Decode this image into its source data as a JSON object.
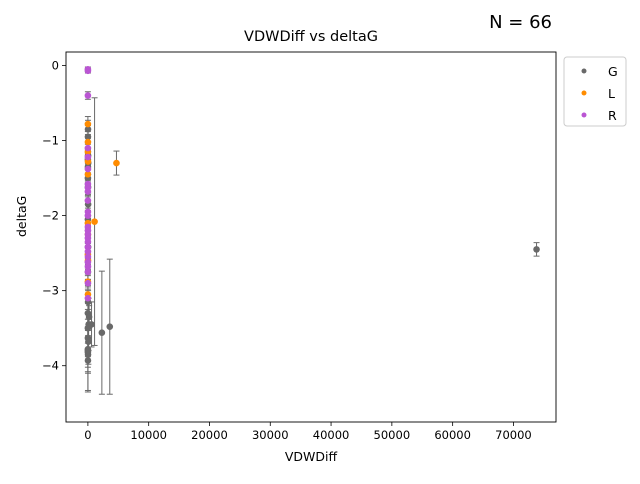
{
  "annotation": {
    "n_label": "N = 66"
  },
  "chart_data": {
    "type": "scatter",
    "title": "VDWDiff vs deltaG",
    "xlabel": "VDWDiff",
    "ylabel": "deltaG",
    "xlim": [
      -3600,
      77000
    ],
    "ylim": [
      -4.75,
      0.18
    ],
    "x_ticks": [
      0,
      10000,
      20000,
      30000,
      40000,
      50000,
      60000,
      70000
    ],
    "y_ticks": [
      0,
      -1,
      -2,
      -3,
      -4
    ],
    "grid": false,
    "legend_position": "outside-top-right",
    "series": [
      {
        "name": "G",
        "color": "#696969",
        "points": [
          {
            "x": 20,
            "y": -0.85,
            "err": 0.12
          },
          {
            "x": 10,
            "y": -0.95,
            "err": 0.15
          },
          {
            "x": 30,
            "y": -1.2,
            "err": 0.1
          },
          {
            "x": 0,
            "y": -1.25,
            "err": 0.12
          },
          {
            "x": 50,
            "y": -1.3,
            "err": 0.15
          },
          {
            "x": 10,
            "y": -1.35,
            "err": 0.1
          },
          {
            "x": 0,
            "y": -1.5,
            "err": 0.12
          },
          {
            "x": 20,
            "y": -1.62,
            "err": 0.1
          },
          {
            "x": 40,
            "y": -1.85,
            "err": 0.15
          },
          {
            "x": 0,
            "y": -2.05,
            "err": 0.12
          },
          {
            "x": 30,
            "y": -2.42,
            "err": 0.15
          },
          {
            "x": 10,
            "y": -2.75,
            "err": 0.1
          },
          {
            "x": 30,
            "y": -3.15,
            "err": 0.15
          },
          {
            "x": 0,
            "y": -3.3,
            "err": 0.2
          },
          {
            "x": 200,
            "y": -3.35,
            "err": 0.15
          },
          {
            "x": 120,
            "y": -3.45,
            "err": 0.35
          },
          {
            "x": 600,
            "y": -3.45,
            "err": 0.3
          },
          {
            "x": 0,
            "y": -3.5,
            "err": 0.2
          },
          {
            "x": 3600,
            "y": -3.48,
            "err": 0.9
          },
          {
            "x": 2300,
            "y": -3.56,
            "err": 0.82
          },
          {
            "x": 0,
            "y": -3.63,
            "err": 0.25
          },
          {
            "x": 80,
            "y": -3.68,
            "err": 0.3
          },
          {
            "x": 0,
            "y": -3.78,
            "err": 0.3
          },
          {
            "x": 0,
            "y": -3.82,
            "err": 0.2
          },
          {
            "x": 20,
            "y": -3.85,
            "err": 0.25
          },
          {
            "x": 10,
            "y": -3.93,
            "err": 0.4
          },
          {
            "x": 0,
            "y": -3.8,
            "err": 0.55
          },
          {
            "x": 73800,
            "y": -2.45,
            "err": 0.09
          }
        ]
      },
      {
        "name": "L",
        "color": "#ff8c00",
        "points": [
          {
            "x": 0,
            "y": -0.78,
            "err": 0.1
          },
          {
            "x": 10,
            "y": -1.02,
            "err": 0.1
          },
          {
            "x": 0,
            "y": -1.15,
            "err": 0.12
          },
          {
            "x": 20,
            "y": -1.28,
            "err": 0.1
          },
          {
            "x": 0,
            "y": -1.45,
            "err": 0.1
          },
          {
            "x": 4700,
            "y": -1.3,
            "err": 0.16
          },
          {
            "x": 1100,
            "y": -2.08,
            "err": 1.65
          },
          {
            "x": 0,
            "y": -2.1,
            "err": 0.1
          },
          {
            "x": 10,
            "y": -2.25,
            "err": 0.12
          },
          {
            "x": 0,
            "y": -2.52,
            "err": 0.1
          },
          {
            "x": 20,
            "y": -2.6,
            "err": 0.12
          },
          {
            "x": 0,
            "y": -2.88,
            "err": 0.1
          },
          {
            "x": 10,
            "y": -3.05,
            "err": 0.12
          }
        ]
      },
      {
        "name": "R",
        "color": "#ba55d3",
        "points": [
          {
            "x": 0,
            "y": -0.05,
            "err": 0.03
          },
          {
            "x": 10,
            "y": -0.07,
            "err": 0.03
          },
          {
            "x": 0,
            "y": -0.4,
            "err": 0.05
          },
          {
            "x": 0,
            "y": -1.1,
            "err": 0.05
          },
          {
            "x": 10,
            "y": -1.38,
            "err": 0.05
          },
          {
            "x": 0,
            "y": -1.58,
            "err": 0.05
          },
          {
            "x": 10,
            "y": -1.63,
            "err": 0.05
          },
          {
            "x": 0,
            "y": -1.68,
            "err": 0.05
          },
          {
            "x": 0,
            "y": -1.8,
            "err": 0.05
          },
          {
            "x": 10,
            "y": -1.95,
            "err": 0.05
          },
          {
            "x": 0,
            "y": -2.0,
            "err": 0.05
          },
          {
            "x": 0,
            "y": -2.15,
            "err": 0.05
          },
          {
            "x": 10,
            "y": -2.2,
            "err": 0.05
          },
          {
            "x": 0,
            "y": -2.25,
            "err": 0.05
          },
          {
            "x": 0,
            "y": -2.3,
            "err": 0.05
          },
          {
            "x": 10,
            "y": -2.35,
            "err": 0.05
          },
          {
            "x": 0,
            "y": -2.42,
            "err": 0.05
          },
          {
            "x": 10,
            "y": -2.48,
            "err": 0.05
          },
          {
            "x": 0,
            "y": -2.62,
            "err": 0.05
          },
          {
            "x": 10,
            "y": -2.68,
            "err": 0.05
          },
          {
            "x": 0,
            "y": -2.75,
            "err": 0.05
          },
          {
            "x": 10,
            "y": -2.9,
            "err": 0.05
          },
          {
            "x": 0,
            "y": -3.1,
            "err": 0.05
          },
          {
            "x": 10,
            "y": -2.55,
            "err": 0.05
          },
          {
            "x": 0,
            "y": -1.22,
            "err": 0.05
          }
        ]
      }
    ]
  }
}
